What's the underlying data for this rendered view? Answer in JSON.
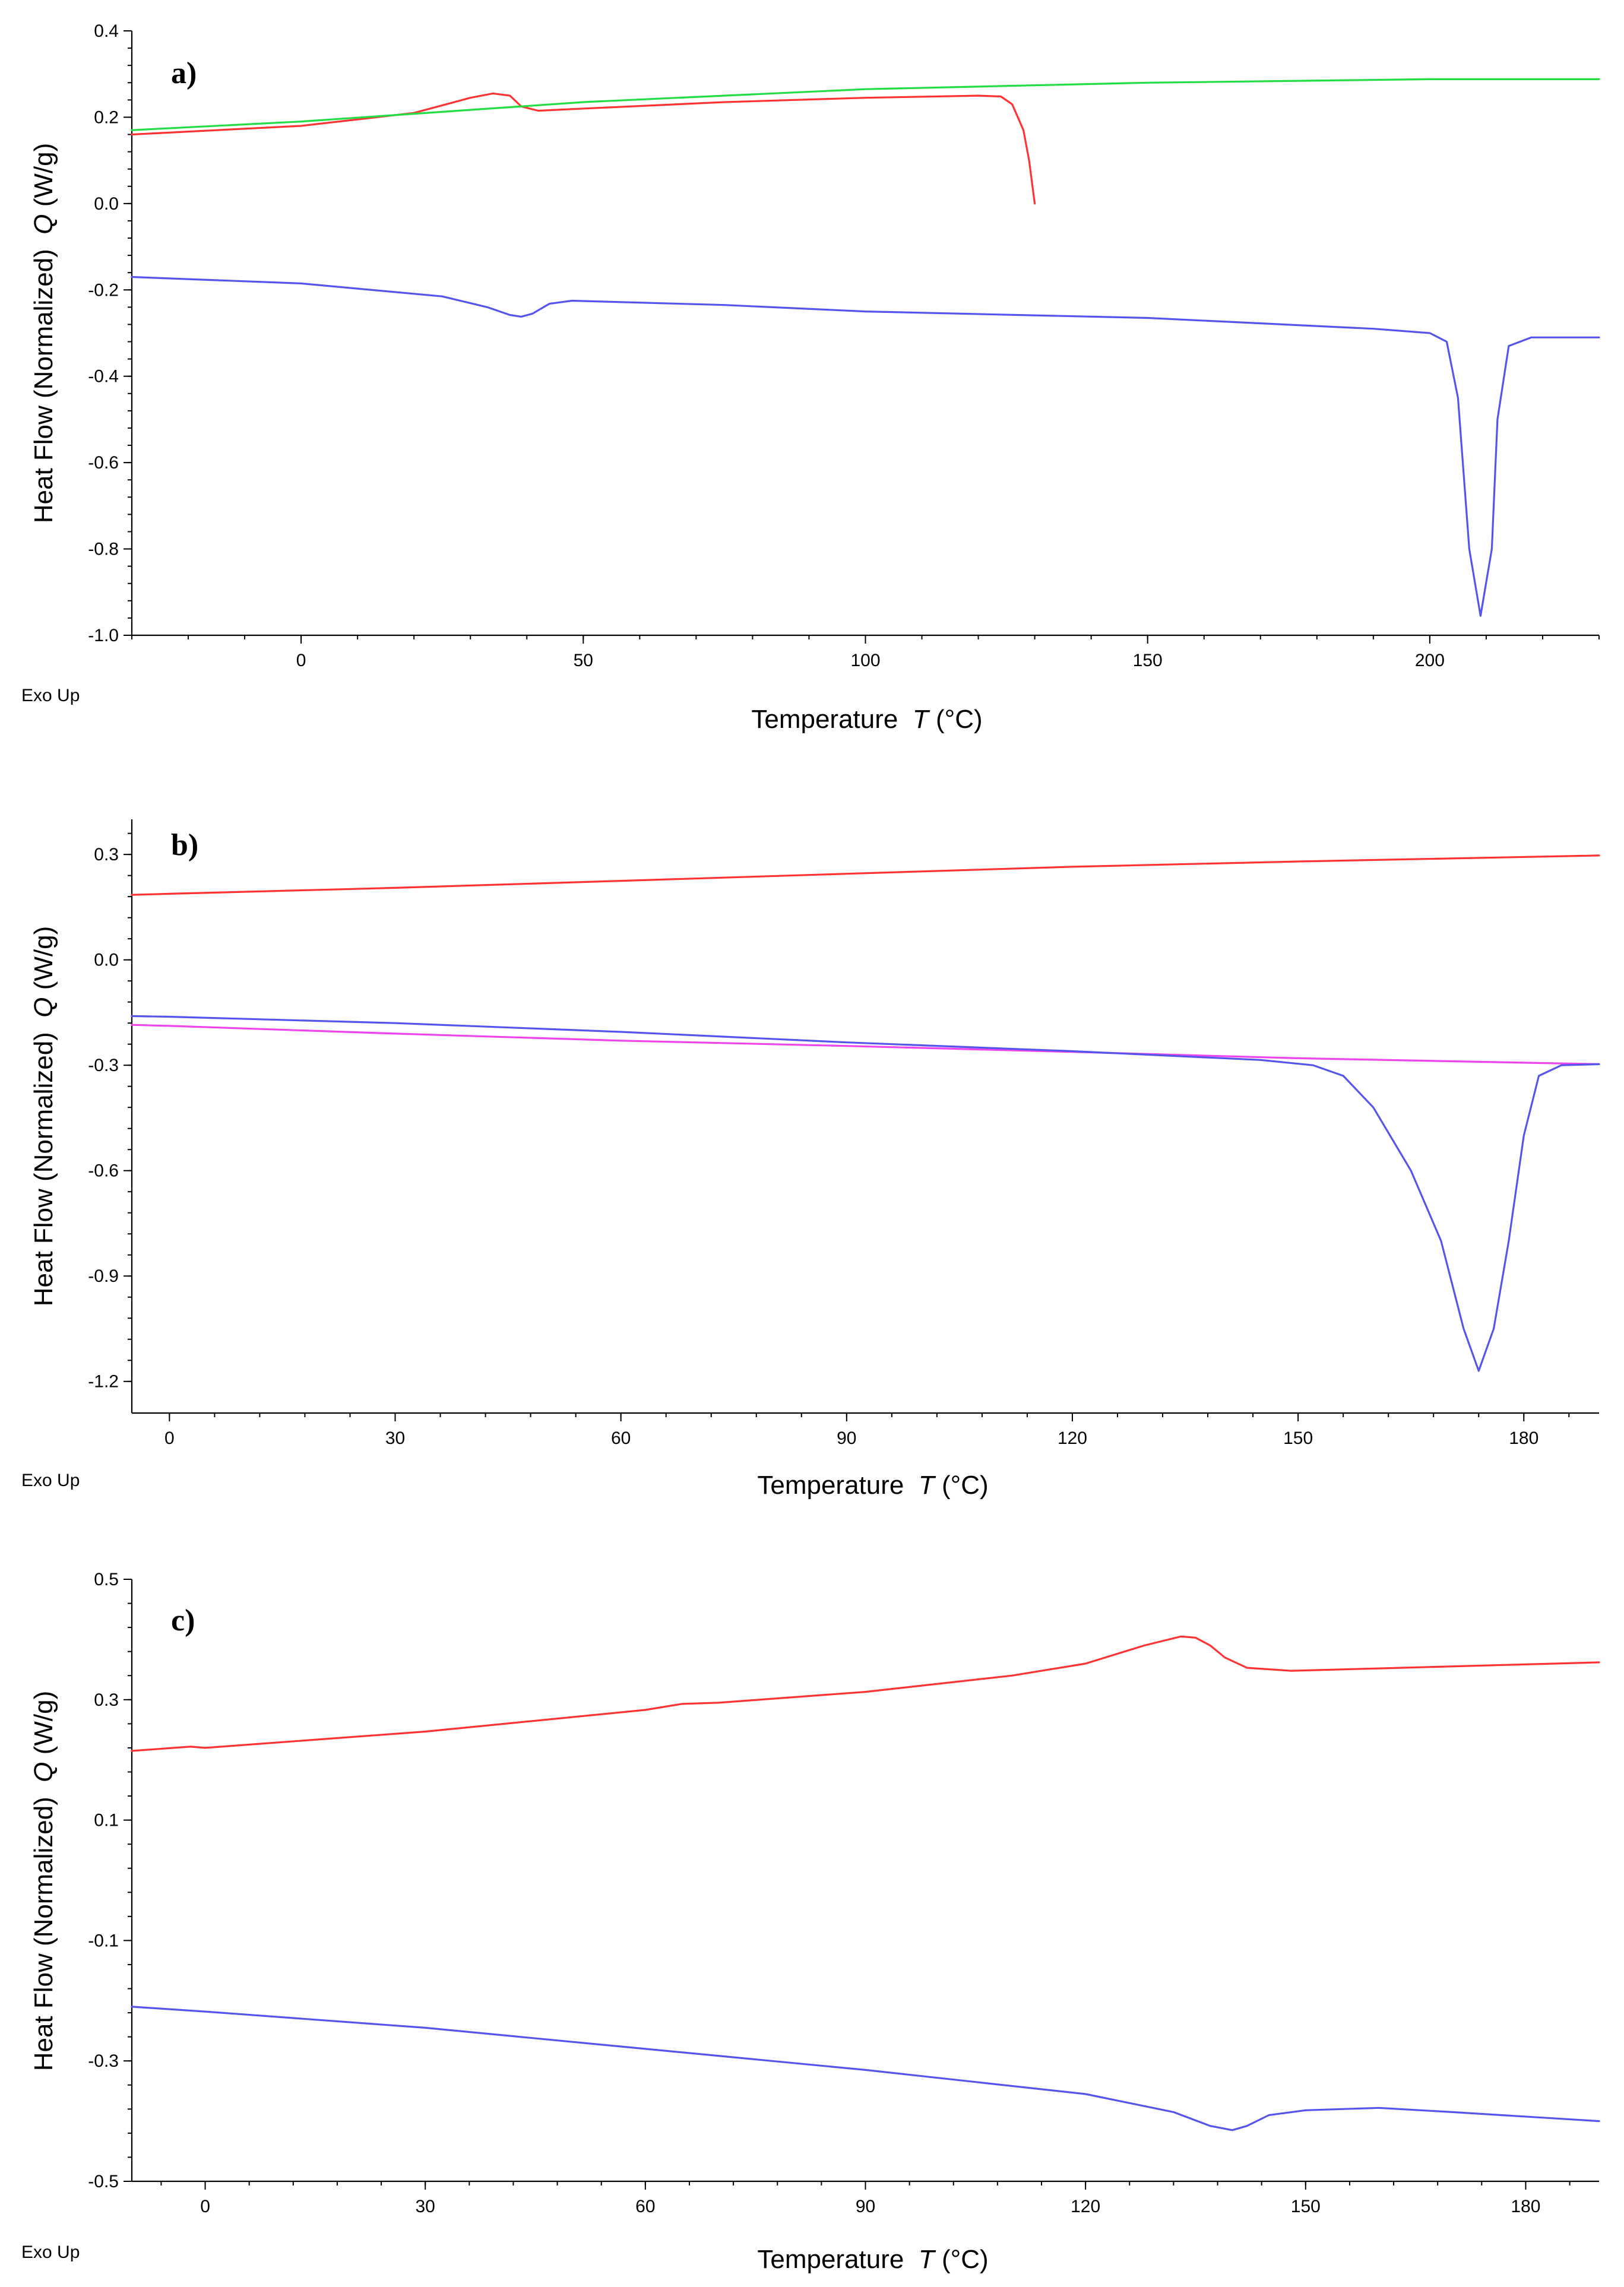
{
  "chart_data": [
    {
      "type": "line",
      "panel_label": "a)",
      "xlabel": "Temperature",
      "xlabel_var": "T",
      "xlabel_unit": "(°C)",
      "ylabel": "Heat Flow (Normalized)",
      "ylabel_var": "Q",
      "ylabel_unit": "(W/g)",
      "corner_note": "Exo Up",
      "xlim": [
        -30,
        230
      ],
      "ylim": [
        -1.0,
        0.4
      ],
      "xticks": [
        0,
        50,
        100,
        150,
        200
      ],
      "xtick_labels": [
        "0",
        "50",
        "100",
        "150",
        "200"
      ],
      "yticks": [
        0.4,
        0.2,
        0.0,
        -0.2,
        -0.4,
        -0.6,
        -0.8,
        -1.0
      ],
      "ytick_labels": [
        "0.4",
        "0.2",
        "0.0",
        "-0.2",
        "-0.4",
        "-0.6",
        "-0.8",
        "-1.0"
      ],
      "series": [
        {
          "name": "red",
          "color": "#ff3333",
          "points": [
            [
              -30,
              0.16
            ],
            [
              0,
              0.18
            ],
            [
              20,
              0.21
            ],
            [
              30,
              0.245
            ],
            [
              34,
              0.255
            ],
            [
              37,
              0.25
            ],
            [
              39,
              0.225
            ],
            [
              42,
              0.215
            ],
            [
              50,
              0.22
            ],
            [
              75,
              0.235
            ],
            [
              100,
              0.245
            ],
            [
              120,
              0.25
            ],
            [
              124,
              0.248
            ],
            [
              126,
              0.23
            ],
            [
              128,
              0.17
            ],
            [
              129,
              0.1
            ],
            [
              130,
              0.0
            ]
          ]
        },
        {
          "name": "green",
          "color": "#22dd44",
          "points": [
            [
              -30,
              0.17
            ],
            [
              0,
              0.19
            ],
            [
              50,
              0.235
            ],
            [
              100,
              0.265
            ],
            [
              150,
              0.28
            ],
            [
              200,
              0.288
            ],
            [
              230,
              0.288
            ]
          ]
        },
        {
          "name": "blue",
          "color": "#5555ee",
          "points": [
            [
              -30,
              -0.17
            ],
            [
              0,
              -0.185
            ],
            [
              25,
              -0.215
            ],
            [
              33,
              -0.24
            ],
            [
              37,
              -0.258
            ],
            [
              39,
              -0.262
            ],
            [
              41,
              -0.255
            ],
            [
              44,
              -0.232
            ],
            [
              48,
              -0.225
            ],
            [
              75,
              -0.235
            ],
            [
              100,
              -0.25
            ],
            [
              150,
              -0.265
            ],
            [
              190,
              -0.29
            ],
            [
              200,
              -0.3
            ],
            [
              203,
              -0.32
            ],
            [
              205,
              -0.45
            ],
            [
              207,
              -0.8
            ],
            [
              209,
              -0.955
            ],
            [
              211,
              -0.8
            ],
            [
              212,
              -0.5
            ],
            [
              214,
              -0.33
            ],
            [
              218,
              -0.31
            ],
            [
              230,
              -0.31
            ]
          ]
        }
      ]
    },
    {
      "type": "line",
      "panel_label": "b)",
      "xlabel": "Temperature",
      "xlabel_var": "T",
      "xlabel_unit": "(°C)",
      "ylabel": "Heat Flow (Normalized)",
      "ylabel_var": "Q",
      "ylabel_unit": "(W/g)",
      "corner_note": "Exo Up",
      "xlim": [
        -5,
        190
      ],
      "ylim": [
        -1.29,
        0.4
      ],
      "xticks": [
        0,
        30,
        60,
        90,
        120,
        150,
        180
      ],
      "xtick_labels": [
        "0",
        "30",
        "60",
        "90",
        "120",
        "150",
        "180"
      ],
      "yticks": [
        0.3,
        0.0,
        -0.3,
        -0.6,
        -0.9,
        -1.2
      ],
      "ytick_labels": [
        "0.3",
        "0.0",
        "-0.3",
        "-0.6",
        "-0.9",
        "-1.2"
      ],
      "series": [
        {
          "name": "red",
          "color": "#ff3333",
          "points": [
            [
              -5,
              0.185
            ],
            [
              0,
              0.188
            ],
            [
              30,
              0.205
            ],
            [
              60,
              0.225
            ],
            [
              90,
              0.245
            ],
            [
              120,
              0.265
            ],
            [
              150,
              0.28
            ],
            [
              190,
              0.297
            ]
          ]
        },
        {
          "name": "magenta",
          "color": "#ee44ee",
          "points": [
            [
              -5,
              -0.185
            ],
            [
              0,
              -0.188
            ],
            [
              30,
              -0.21
            ],
            [
              60,
              -0.23
            ],
            [
              90,
              -0.245
            ],
            [
              120,
              -0.262
            ],
            [
              150,
              -0.28
            ],
            [
              190,
              -0.297
            ]
          ]
        },
        {
          "name": "blue",
          "color": "#5555ee",
          "points": [
            [
              -5,
              -0.16
            ],
            [
              0,
              -0.162
            ],
            [
              30,
              -0.18
            ],
            [
              60,
              -0.205
            ],
            [
              90,
              -0.235
            ],
            [
              120,
              -0.26
            ],
            [
              145,
              -0.285
            ],
            [
              152,
              -0.3
            ],
            [
              156,
              -0.33
            ],
            [
              160,
              -0.42
            ],
            [
              165,
              -0.6
            ],
            [
              169,
              -0.8
            ],
            [
              172,
              -1.05
            ],
            [
              174,
              -1.17
            ],
            [
              176,
              -1.05
            ],
            [
              178,
              -0.8
            ],
            [
              180,
              -0.5
            ],
            [
              182,
              -0.33
            ],
            [
              185,
              -0.3
            ],
            [
              190,
              -0.297
            ]
          ]
        }
      ]
    },
    {
      "type": "line",
      "panel_label": "c)",
      "xlabel": "Temperature",
      "xlabel_var": "T",
      "xlabel_unit": "(°C)",
      "ylabel": "Heat Flow (Normalized)",
      "ylabel_var": "Q",
      "ylabel_unit": "(W/g)",
      "corner_note": "Exo Up",
      "xlim": [
        -10,
        190
      ],
      "ylim": [
        -0.5,
        0.5
      ],
      "xticks": [
        0,
        30,
        60,
        90,
        120,
        150,
        180
      ],
      "xtick_labels": [
        "0",
        "30",
        "60",
        "90",
        "120",
        "150",
        "180"
      ],
      "yticks": [
        0.5,
        0.3,
        0.1,
        -0.1,
        -0.3,
        -0.5
      ],
      "ytick_labels": [
        "0.5",
        "0.3",
        "0.1",
        "-0.1",
        "-0.3",
        "-0.5"
      ],
      "series": [
        {
          "name": "red",
          "color": "#ff3333",
          "points": [
            [
              -10,
              0.215
            ],
            [
              -2,
              0.222
            ],
            [
              0,
              0.22
            ],
            [
              30,
              0.247
            ],
            [
              60,
              0.283
            ],
            [
              65,
              0.293
            ],
            [
              70,
              0.295
            ],
            [
              90,
              0.313
            ],
            [
              110,
              0.34
            ],
            [
              120,
              0.36
            ],
            [
              128,
              0.39
            ],
            [
              133,
              0.405
            ],
            [
              135,
              0.403
            ],
            [
              137,
              0.39
            ],
            [
              139,
              0.37
            ],
            [
              142,
              0.353
            ],
            [
              148,
              0.348
            ],
            [
              160,
              0.352
            ],
            [
              190,
              0.362
            ]
          ]
        },
        {
          "name": "blue",
          "color": "#5555ee",
          "points": [
            [
              -10,
              -0.21
            ],
            [
              0,
              -0.218
            ],
            [
              30,
              -0.245
            ],
            [
              60,
              -0.28
            ],
            [
              90,
              -0.315
            ],
            [
              120,
              -0.355
            ],
            [
              132,
              -0.385
            ],
            [
              137,
              -0.408
            ],
            [
              140,
              -0.415
            ],
            [
              142,
              -0.408
            ],
            [
              145,
              -0.39
            ],
            [
              150,
              -0.382
            ],
            [
              160,
              -0.378
            ],
            [
              170,
              -0.385
            ],
            [
              190,
              -0.4
            ]
          ]
        }
      ]
    }
  ]
}
